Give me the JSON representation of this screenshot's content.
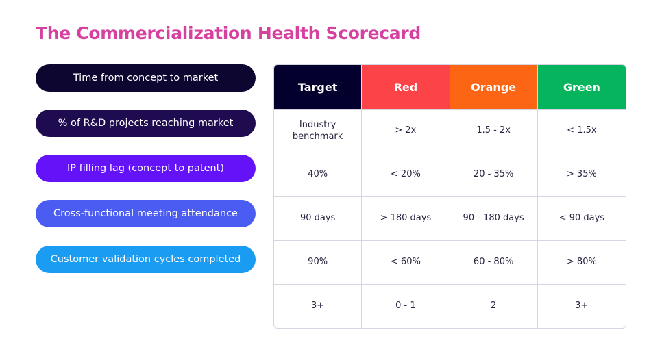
{
  "title": "The Commercialization Health Scorecard",
  "metrics": [
    {
      "label": "Time from concept to market",
      "color": "#0d0630"
    },
    {
      "label": "% of R&D projects reaching market",
      "color": "#1f0b50"
    },
    {
      "label": "IP filling lag (concept to patent)",
      "color": "#6412f7"
    },
    {
      "label": "Cross-functional meeting attendance",
      "color": "#4b5cf2"
    },
    {
      "label": "Customer validation cycles completed",
      "color": "#1a9cf2"
    }
  ],
  "table": {
    "headers": [
      {
        "label": "Target",
        "color": "#04002e"
      },
      {
        "label": "Red",
        "color": "#fc4448"
      },
      {
        "label": "Orange",
        "color": "#fb6514"
      },
      {
        "label": "Green",
        "color": "#05b45c"
      }
    ],
    "rows": [
      [
        "Industry benchmark",
        ">  2x",
        "1.5 - 2x",
        "< 1.5x"
      ],
      [
        "40%",
        "< 20%",
        "20 - 35%",
        "> 35%"
      ],
      [
        "90 days",
        "> 180 days",
        "90 - 180 days",
        "< 90 days"
      ],
      [
        "90%",
        "< 60%",
        "60 - 80%",
        "> 80%"
      ],
      [
        "3+",
        "0 - 1",
        "2",
        "3+"
      ]
    ]
  }
}
